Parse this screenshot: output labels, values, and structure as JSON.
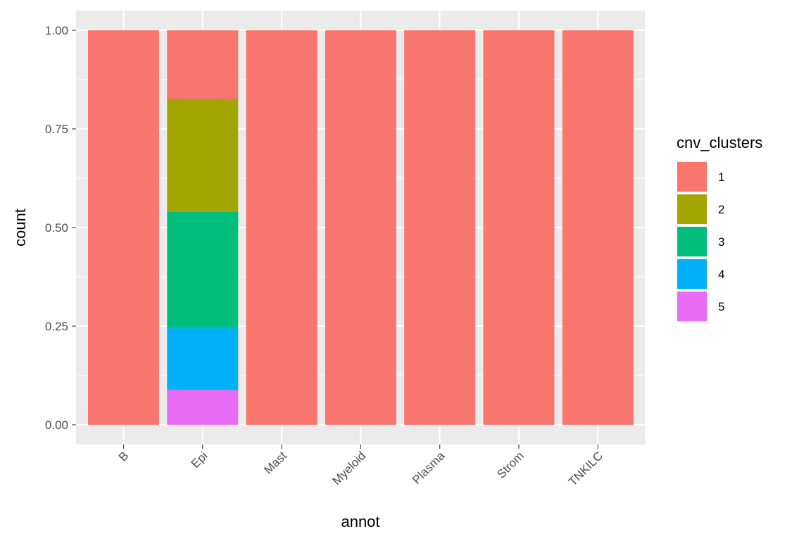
{
  "chart_data": {
    "type": "bar",
    "stacked": true,
    "xlabel": "annot",
    "ylabel": "count",
    "ylim": [
      0,
      1
    ],
    "yticks": [
      "0.00",
      "0.25",
      "0.50",
      "0.75",
      "1.00"
    ],
    "ytick_values": [
      0,
      0.25,
      0.5,
      0.75,
      1
    ],
    "categories": [
      "B",
      "Epi",
      "Mast",
      "Myeloid",
      "Plasma",
      "Strom",
      "TNKILC"
    ],
    "legend": {
      "title": "cnv_clusters",
      "position": "right"
    },
    "grid": true,
    "series": [
      {
        "name": "1",
        "color": "#F8766D",
        "values": [
          1.0,
          0.175,
          1.0,
          1.0,
          1.0,
          1.0,
          1.0
        ]
      },
      {
        "name": "2",
        "color": "#A3A500",
        "values": [
          0,
          0.285,
          0,
          0,
          0,
          0,
          0
        ]
      },
      {
        "name": "3",
        "color": "#00BF7D",
        "values": [
          0,
          0.295,
          0,
          0,
          0,
          0,
          0
        ]
      },
      {
        "name": "4",
        "color": "#00B0F6",
        "values": [
          0,
          0.157,
          0,
          0,
          0,
          0,
          0
        ]
      },
      {
        "name": "5",
        "color": "#E76BF3",
        "values": [
          0,
          0.088,
          0,
          0,
          0,
          0,
          0
        ]
      }
    ]
  }
}
